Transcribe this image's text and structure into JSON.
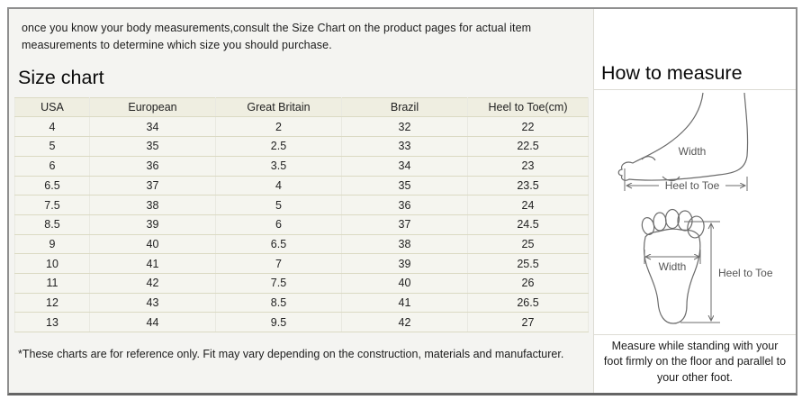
{
  "intro_text": "once you know your body measurements,consult the Size Chart on the product pages for actual item measurements to determine which size you should purchase.",
  "size_chart": {
    "title": "Size chart",
    "columns": [
      "USA",
      "European",
      "Great Britain",
      "Brazil",
      "Heel to Toe(cm)"
    ],
    "rows": [
      [
        "4",
        "34",
        "2",
        "32",
        "22"
      ],
      [
        "5",
        "35",
        "2.5",
        "33",
        "22.5"
      ],
      [
        "6",
        "36",
        "3.5",
        "34",
        "23"
      ],
      [
        "6.5",
        "37",
        "4",
        "35",
        "23.5"
      ],
      [
        "7.5",
        "38",
        "5",
        "36",
        "24"
      ],
      [
        "8.5",
        "39",
        "6",
        "37",
        "24.5"
      ],
      [
        "9",
        "40",
        "6.5",
        "38",
        "25"
      ],
      [
        "10",
        "41",
        "7",
        "39",
        "25.5"
      ],
      [
        "11",
        "42",
        "7.5",
        "40",
        "26"
      ],
      [
        "12",
        "43",
        "8.5",
        "41",
        "26.5"
      ],
      [
        "13",
        "44",
        "9.5",
        "42",
        "27"
      ]
    ],
    "footnote": "*These charts are for reference only. Fit may vary depending on the construction, materials and manufacturer."
  },
  "how_to_measure": {
    "title": "How to measure",
    "side_view": {
      "width_label": "Width",
      "length_label": "Heel to Toe"
    },
    "top_view": {
      "width_label": "Width",
      "length_label": "Heel to Toe"
    },
    "note": "Measure while standing with your foot firmly on the floor and parallel to your other foot."
  },
  "colors": {
    "left_panel_bg": "#f4f4f1",
    "table_header_bg": "#efeee1",
    "table_row_bg": "#f5f5ef",
    "table_border": "#dbdac3",
    "frame_border": "#8f8f8f",
    "divider": "#dddcd4",
    "drawing_stroke": "#6b6b6b"
  }
}
